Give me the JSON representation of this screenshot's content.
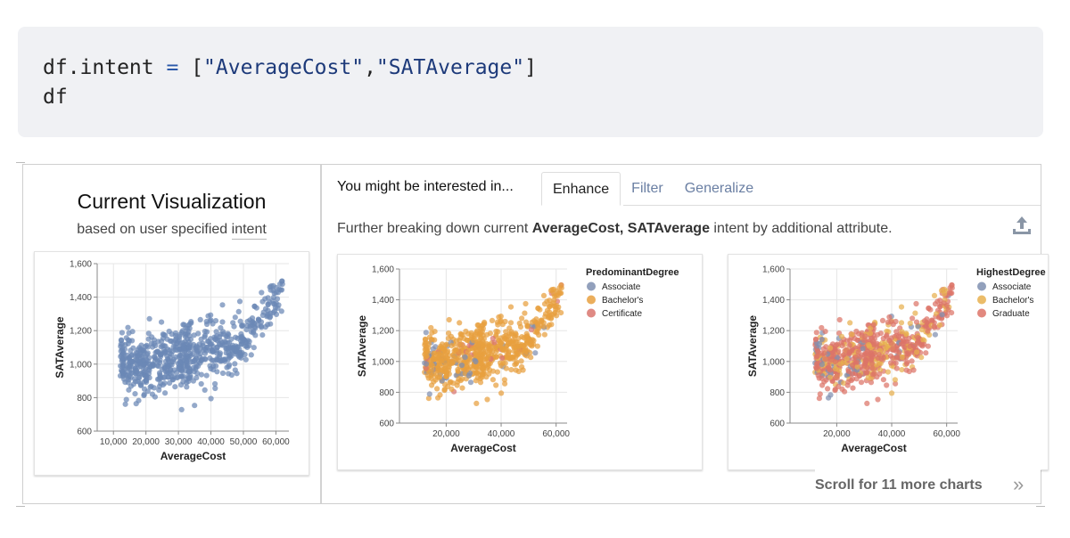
{
  "code": {
    "line1": {
      "var": "df.intent ",
      "op": "=",
      "open": " [",
      "arg1": "\"AverageCost\"",
      "comma": ",",
      "arg2": "\"SATAverage\"",
      "close": "]"
    },
    "line2": "df"
  },
  "current": {
    "title": "Current Visualization",
    "subtitle_prefix": "based on user specified ",
    "subtitle_word": "intent"
  },
  "recommendations": {
    "header": "You might be interested in...",
    "tabs": [
      "Enhance",
      "Filter",
      "Generalize"
    ],
    "active_tab": "Enhance",
    "desc_prefix": "Further breaking down current ",
    "desc_bold": "AverageCost, SATAverage",
    "desc_suffix": " intent by additional attribute.",
    "export_icon": "upload-icon",
    "scroll_text": "Scroll for 11 more charts",
    "scroll_icon": "double-chevron-right-icon"
  },
  "chart_data": [
    {
      "type": "scatter",
      "xlabel": "AverageCost",
      "ylabel": "SATAverage",
      "xticks": [
        "10,000",
        "20,000",
        "30,000",
        "40,000",
        "50,000",
        "60,000"
      ],
      "yticks": [
        "600",
        "800",
        "1,000",
        "1,200",
        "1,400",
        "1,600"
      ],
      "xlim": [
        5000,
        64000
      ],
      "ylim": [
        600,
        1600
      ],
      "grid": true,
      "color": "#6b88b6",
      "points": "approximately 1000 colleges; bulk between AverageCost 10,000-50,000 with SATAverage 900-1,200, rising to 1,300-1,550 above 50,000"
    },
    {
      "type": "scatter",
      "xlabel": "AverageCost",
      "ylabel": "SATAverage",
      "xticks": [
        "20,000",
        "40,000",
        "60,000"
      ],
      "yticks": [
        "600",
        "800",
        "1,000",
        "1,200",
        "1,400",
        "1,600"
      ],
      "xlim": [
        3000,
        64000
      ],
      "ylim": [
        600,
        1600
      ],
      "grid": true,
      "legend_title": "PredominantDegree",
      "legend_position": "right",
      "series": [
        {
          "name": "Associate",
          "color": "#7f8fb0"
        },
        {
          "name": "Bachelor's",
          "color": "#e8a03f"
        },
        {
          "name": "Certificate",
          "color": "#d9756f"
        }
      ]
    },
    {
      "type": "scatter",
      "xlabel": "AverageCost",
      "ylabel": "SATAverage",
      "xticks": [
        "20,000",
        "40,000",
        "60,000"
      ],
      "yticks": [
        "600",
        "800",
        "1,000",
        "1,200",
        "1,400",
        "1,600"
      ],
      "xlim": [
        3000,
        64000
      ],
      "ylim": [
        600,
        1600
      ],
      "grid": true,
      "legend_title": "HighestDegree",
      "legend_position": "right",
      "series": [
        {
          "name": "Associate",
          "color": "#7f8fb0"
        },
        {
          "name": "Bachelor's",
          "color": "#e8b04f"
        },
        {
          "name": "Graduate",
          "color": "#dd7468"
        }
      ]
    }
  ]
}
